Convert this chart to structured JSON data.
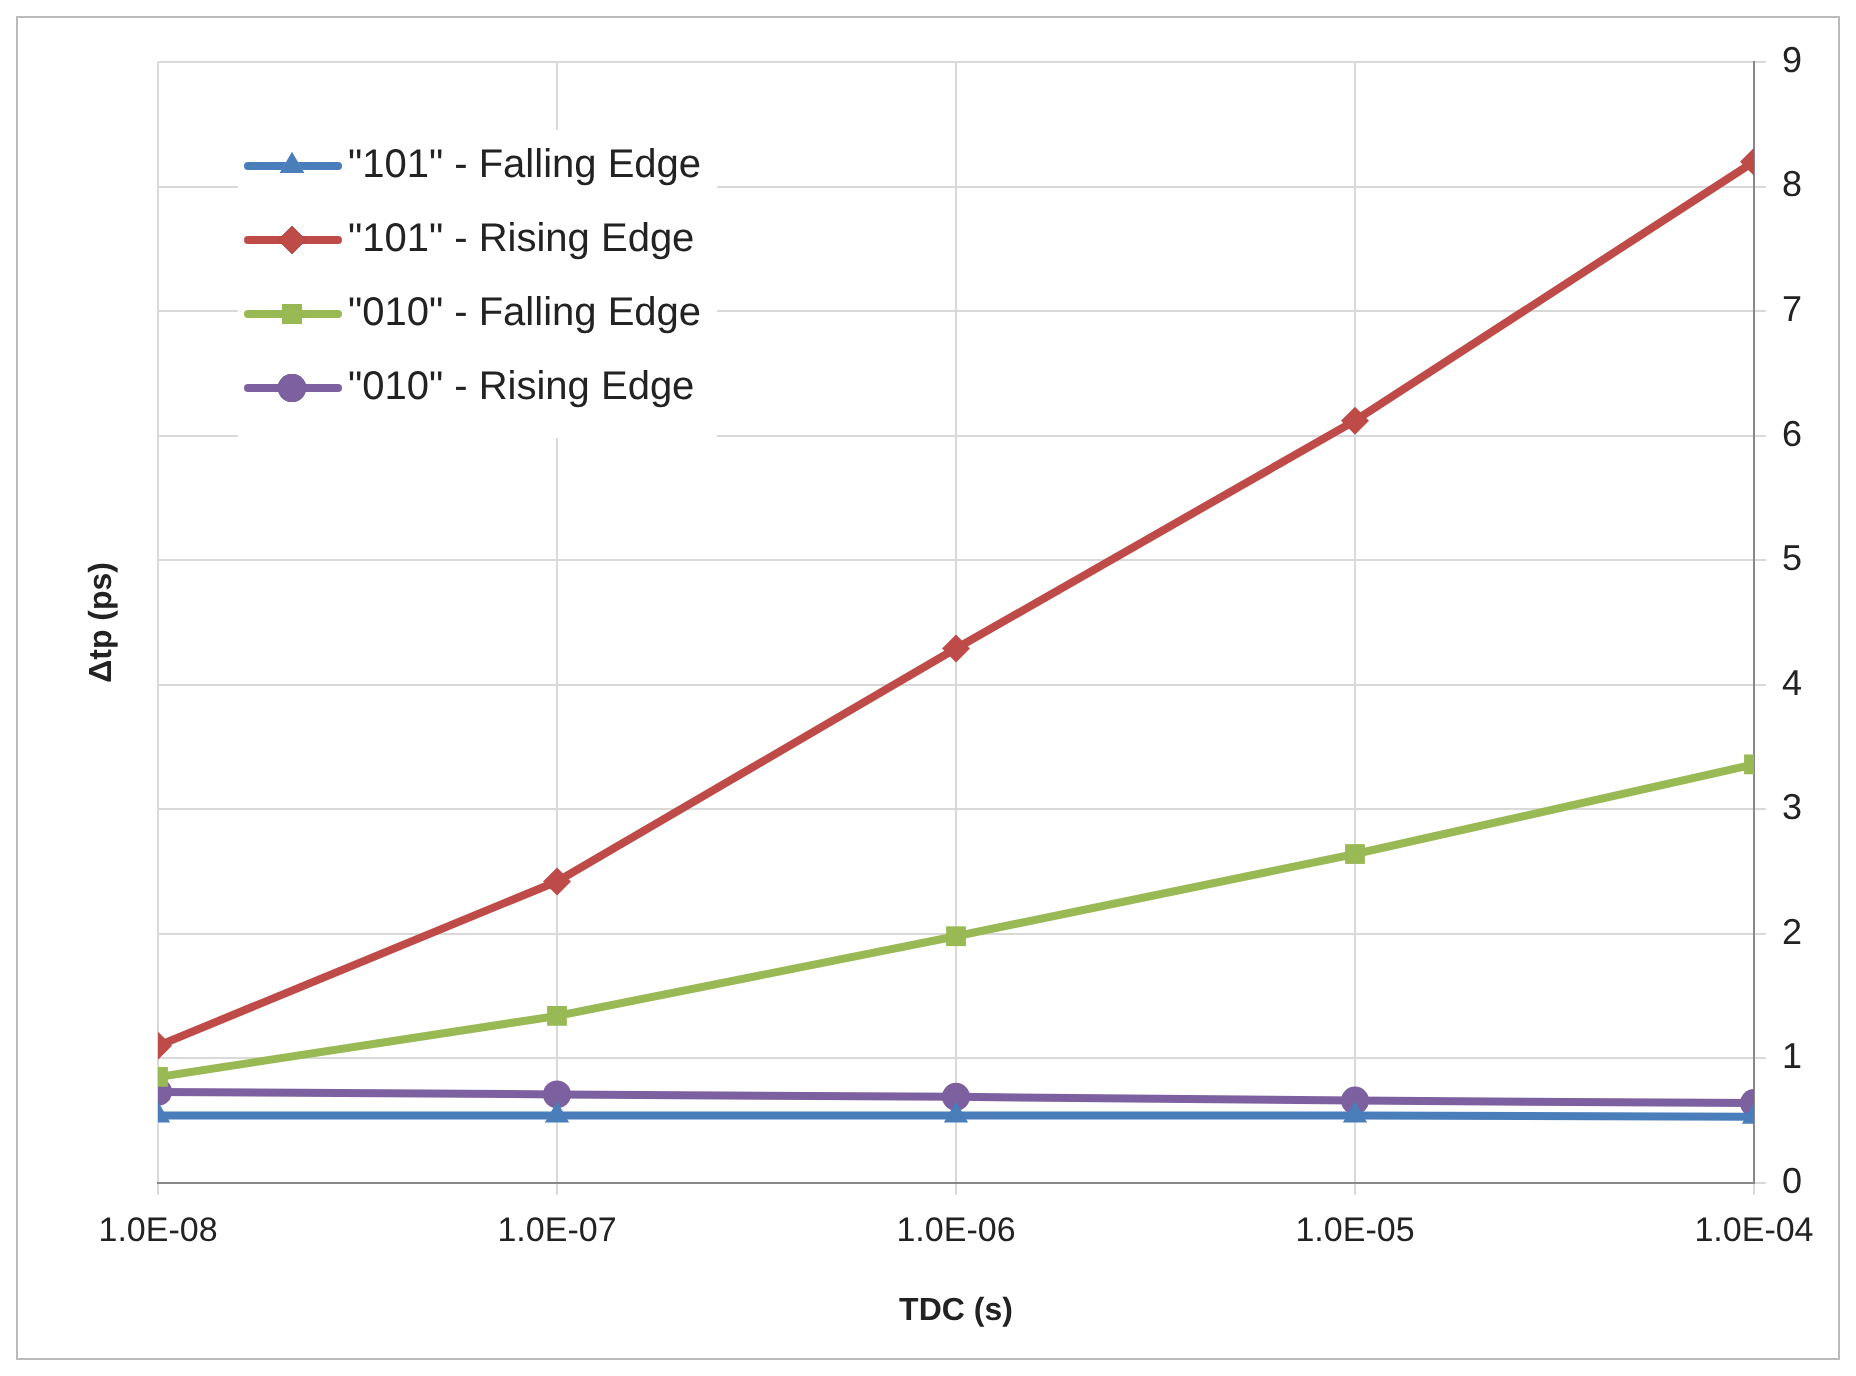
{
  "chart_data": {
    "type": "line",
    "xlabel": "TDC (s)",
    "ylabel": "Δtp (ps)",
    "x": [
      1e-08,
      1e-07,
      1e-06,
      1e-05,
      0.0001
    ],
    "log": "x",
    "xlim": [
      1e-08,
      0.0001
    ],
    "xticks": [
      {
        "value": 1e-08,
        "label": "1.0E-08"
      },
      {
        "value": 1e-07,
        "label": "1.0E-07"
      },
      {
        "value": 1e-06,
        "label": "1.0E-06"
      },
      {
        "value": 1e-05,
        "label": "1.0E-05"
      },
      {
        "value": 0.0001,
        "label": "1.0E-04"
      }
    ],
    "ylim": [
      0,
      9
    ],
    "yticks": [
      0,
      1,
      2,
      3,
      4,
      5,
      6,
      7,
      8,
      9
    ],
    "grid": true,
    "legend": "top left",
    "line_style": "solid",
    "series": [
      {
        "name": "\"101\" - Falling Edge",
        "color": "#4a7ebb",
        "marker": "triangle",
        "values": [
          0.54,
          0.54,
          0.54,
          0.54,
          0.53
        ]
      },
      {
        "name": "\"101\" - Rising Edge",
        "color": "#be4b48",
        "marker": "diamond",
        "values": [
          1.1,
          2.42,
          4.29,
          6.12,
          8.2
        ]
      },
      {
        "name": "\"010\" - Falling Edge",
        "color": "#98b954",
        "marker": "square",
        "values": [
          0.85,
          1.34,
          1.98,
          2.64,
          3.36
        ]
      },
      {
        "name": "\"010\" - Rising Edge",
        "color": "#7d60a0",
        "marker": "circle",
        "values": [
          0.73,
          0.71,
          0.69,
          0.66,
          0.64
        ]
      }
    ]
  }
}
